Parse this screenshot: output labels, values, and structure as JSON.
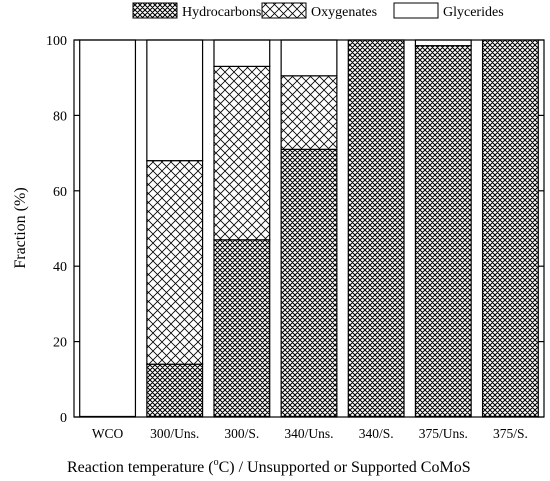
{
  "chart_data": {
    "type": "bar",
    "stacked": true,
    "categories": [
      "WCO",
      "300/Uns.",
      "300/S.",
      "340/Uns.",
      "340/S.",
      "375/Uns.",
      "375/S."
    ],
    "series": [
      {
        "name": "Hydrocarbons",
        "pattern": "dense-crosshatch",
        "values": [
          0,
          14,
          47,
          71,
          100,
          98.5,
          100
        ]
      },
      {
        "name": "Oxygenates",
        "pattern": "open-crosshatch",
        "values": [
          0,
          54,
          46,
          19.5,
          0,
          0,
          0
        ]
      },
      {
        "name": "Glycerides",
        "pattern": "blank",
        "values": [
          100,
          32,
          7,
          9.5,
          0,
          1.5,
          0
        ]
      }
    ],
    "ylabel": "Fraction (%)",
    "xlabel_prefix": "Reaction temperature (",
    "xlabel_sup": "o",
    "xlabel_suffix": "C) / Unsupported or Supported CoMoS",
    "ylim": [
      0,
      100
    ],
    "yticks": [
      0,
      20,
      40,
      60,
      80,
      100
    ],
    "legend_position": "top",
    "grid": false
  }
}
